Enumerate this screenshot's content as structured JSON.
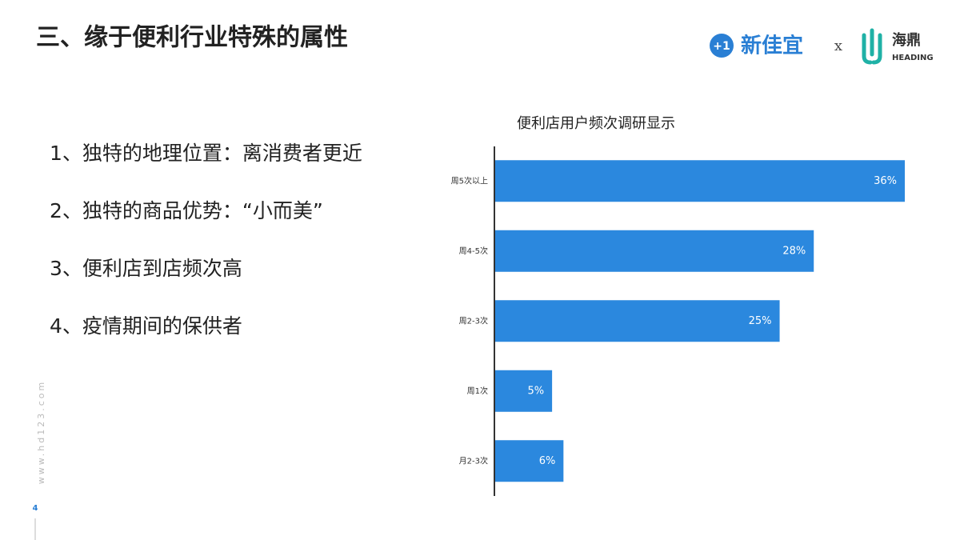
{
  "header": {
    "title": "三、缘于便利行业特殊的属性",
    "logo": {
      "icon": "+1",
      "brand": "新佳宜",
      "separator": "x",
      "partner": "海鼎",
      "partner_en": "HEADING"
    }
  },
  "bullets": [
    "1、独特的地理位置：离消费者更近",
    "2、独特的商品优势：“小而美”",
    "3、便利店到店频次高",
    "4、疫情期间的保供者"
  ],
  "watermark": "www.hd123.com",
  "page_number": "4",
  "chart_data": {
    "type": "bar",
    "orientation": "horizontal",
    "title": "便利店用户频次调研显示",
    "categories": [
      "周5次以上",
      "周4-5次",
      "周2-3次",
      "周1次",
      "月2-3次"
    ],
    "values": [
      36,
      28,
      25,
      5,
      6
    ],
    "value_labels": [
      "36%",
      "28%",
      "25%",
      "5%",
      "6%"
    ],
    "color": "#2b88de"
  }
}
